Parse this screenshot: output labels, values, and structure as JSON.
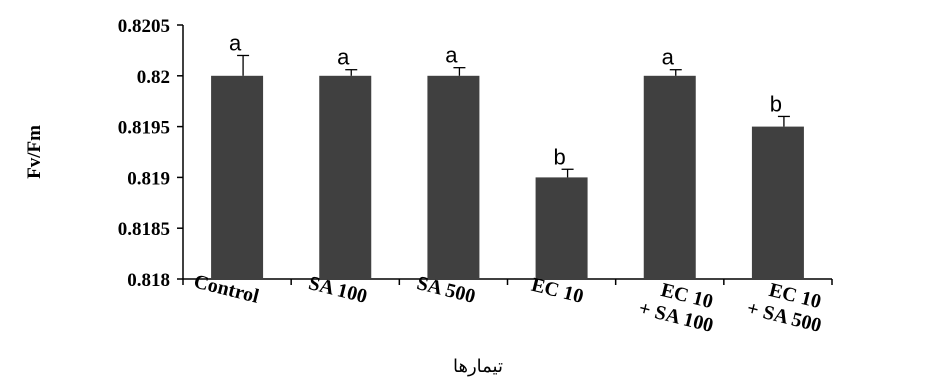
{
  "chart_data": {
    "type": "bar",
    "categories": [
      "Control",
      "SA 100",
      "SA 500",
      "EC 10",
      "EC 10 + SA 100",
      "EC 10 + SA 500"
    ],
    "values": [
      0.82,
      0.82,
      0.82,
      0.819,
      0.82,
      0.8195
    ],
    "error": [
      0.0002,
      6e-05,
      8e-05,
      8e-05,
      6e-05,
      0.0001
    ],
    "significance": [
      "a",
      "a",
      "a",
      "b",
      "a",
      "b"
    ],
    "ylabel": "Fv/Fm",
    "xlabel": "تیمارها",
    "ylim": [
      0.818,
      0.8205
    ],
    "yticks": [
      "0.818",
      "0.8185",
      "0.819",
      "0.8195",
      "0.82",
      "0.8205"
    ],
    "bar_color": "#404040",
    "grid": false
  }
}
